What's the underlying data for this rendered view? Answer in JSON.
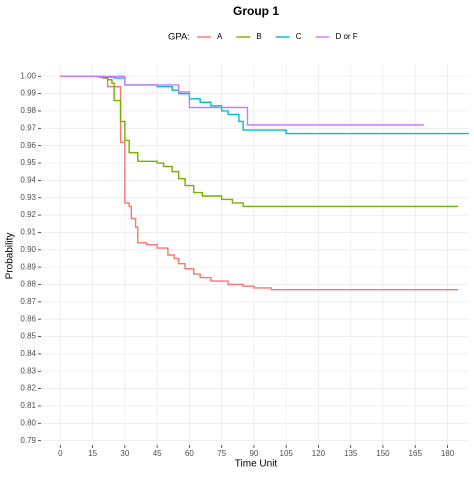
{
  "chart_data": {
    "type": "step",
    "title": "Group 1",
    "x_label": "Time Unit",
    "y_label": "Probability",
    "legend_title": "GPA:",
    "legend_position": "top",
    "grid": true,
    "xlim": [
      -9,
      190
    ],
    "ylim": [
      0.7875,
      1.0065
    ],
    "xticks": [
      0,
      15,
      30,
      45,
      60,
      75,
      90,
      105,
      120,
      135,
      150,
      165,
      180
    ],
    "yticks": [
      {
        "value": 1,
        "label": "1.00"
      },
      0.99,
      0.98,
      0.97,
      0.96,
      0.95,
      0.94,
      0.93,
      0.92,
      0.91,
      {
        "value": 0.9,
        "label": "0.90"
      },
      0.89,
      0.88,
      0.87,
      0.86,
      0.85,
      0.84,
      0.83,
      0.82,
      0.81,
      {
        "value": 0.8,
        "label": "0.80"
      },
      0.79
    ],
    "series": [
      {
        "name": "A",
        "color": "#F8766D",
        "x": [
          0,
          20,
          22,
          28,
          30,
          32,
          33,
          35,
          36,
          40,
          45,
          50,
          53,
          55,
          58,
          62,
          65,
          70,
          78,
          85,
          90,
          98,
          185
        ],
        "values": [
          1,
          0.999,
          0.994,
          0.962,
          0.927,
          0.925,
          0.918,
          0.913,
          0.904,
          0.903,
          0.901,
          0.897,
          0.895,
          0.892,
          0.889,
          0.886,
          0.884,
          0.882,
          0.88,
          0.879,
          0.878,
          0.877,
          0.877
        ]
      },
      {
        "name": "B",
        "color": "#7CAE00",
        "x": [
          0,
          20,
          22,
          24,
          25,
          28,
          30,
          32,
          36,
          45,
          48,
          52,
          55,
          58,
          62,
          66,
          75,
          80,
          85,
          185
        ],
        "values": [
          1,
          0.999,
          0.998,
          0.996,
          0.986,
          0.974,
          0.963,
          0.956,
          0.951,
          0.95,
          0.948,
          0.945,
          0.941,
          0.937,
          0.933,
          0.931,
          0.929,
          0.927,
          0.925,
          0.925
        ]
      },
      {
        "name": "C",
        "color": "#00BFC4",
        "x": [
          0,
          18,
          25,
          30,
          45,
          52,
          55,
          60,
          65,
          70,
          75,
          78,
          83,
          85,
          105,
          190
        ],
        "values": [
          1,
          0.9995,
          0.999,
          0.995,
          0.994,
          0.992,
          0.99,
          0.987,
          0.985,
          0.983,
          0.98,
          0.978,
          0.974,
          0.969,
          0.967,
          0.967
        ]
      },
      {
        "name": "D or F",
        "color": "#C77CFF",
        "x": [
          0,
          30,
          55,
          60,
          87,
          169
        ],
        "values": [
          1,
          0.995,
          0.991,
          0.982,
          0.972,
          0.972
        ]
      }
    ]
  }
}
